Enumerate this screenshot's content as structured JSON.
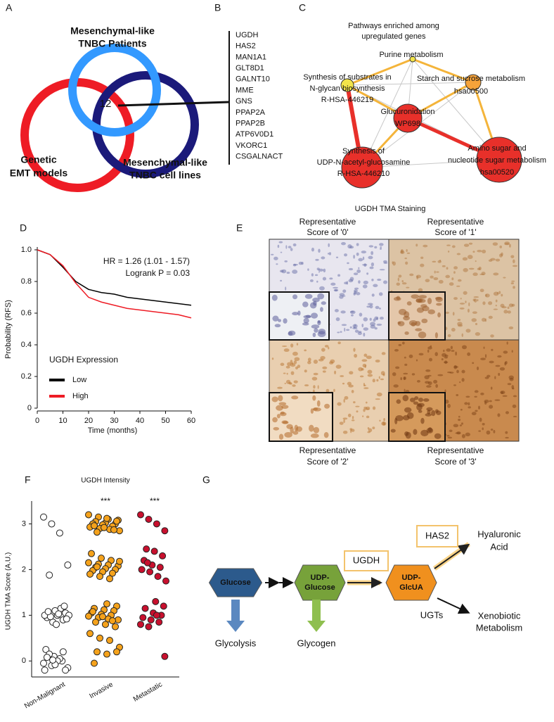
{
  "panel_labels": [
    "A",
    "B",
    "C",
    "D",
    "E",
    "F",
    "G"
  ],
  "venn": {
    "sets": [
      {
        "lines": [
          "Genetic",
          "EMT models"
        ],
        "color": "#ee1c25"
      },
      {
        "lines": [
          "Mesenchymal-like",
          "TNBC cell lines"
        ],
        "color": "#1b1a7a"
      },
      {
        "lines": [
          "Mesenchymal-like",
          "TNBC Patients"
        ],
        "color": "#3399ff"
      }
    ],
    "overlap": 12
  },
  "genes": [
    "UGDH",
    "HAS2",
    "MAN1A1",
    "GLT8D1",
    "GALNT10",
    "MME",
    "GNS",
    "PPAP2A",
    "PPAP2B",
    "ATP6V0D1",
    "VKORC1",
    "CSGALNACT"
  ],
  "network": {
    "title": [
      "Pathways enriched among",
      "upregulated genes"
    ],
    "nodes": [
      {
        "lines": [
          "Purine metabolism"
        ],
        "color": "#f2e44a"
      },
      {
        "lines": [
          "Synthesis of substrates in",
          "N-glycan biosynthesis",
          "R-HSA-446219"
        ],
        "color": "#f2e44a"
      },
      {
        "lines": [
          "Starch and sucrose metabolism",
          "hsa00500"
        ],
        "color": "#f6a33a"
      },
      {
        "lines": [
          "Glucuronidation",
          "WP698"
        ],
        "color": "#e8302a"
      },
      {
        "lines": [
          "Synthesis of",
          "UDP-N-acetyl-glucosamine",
          "R-HSA-446210"
        ],
        "color": "#e8302a"
      },
      {
        "lines": [
          "Amino sugar and",
          "nucleotide sugar metabolism",
          "hsa00520"
        ],
        "color": "#e8302a"
      }
    ]
  },
  "tma": {
    "title": "UGDH TMA Staining",
    "labels": [
      [
        "Representative",
        "Score of '0'"
      ],
      [
        "Representative",
        "Score of '1'"
      ],
      [
        "Representative",
        "Score of '2'"
      ],
      [
        "Representative",
        "Score of '3'"
      ]
    ]
  },
  "pathway": {
    "nodes": [
      {
        "lines": [
          "Glucose"
        ],
        "color": "#2c5a8c"
      },
      {
        "lines": [
          "UDP-",
          "Glucose"
        ],
        "color": "#77a23a"
      },
      {
        "lines": [
          "UDP-",
          "GlcUA"
        ],
        "color": "#f0901e"
      }
    ],
    "enzymes": [
      "UGDH",
      "HAS2",
      "UGTs"
    ],
    "outputs": [
      [
        "Glycolysis"
      ],
      [
        "Glycogen"
      ],
      [
        "Hyaluronic",
        "Acid"
      ],
      [
        "Xenobiotic",
        "Metabolism"
      ]
    ]
  },
  "chart_data": [
    {
      "type": "line",
      "x_label": "Time (months)",
      "y_label": "Probability (RFS)",
      "annotations": [
        "HR = 1.26 (1.01 - 1.57)",
        "Logrank P = 0.03"
      ],
      "legend_title": "UGDH Expression",
      "x": [
        0,
        5,
        10,
        15,
        20,
        25,
        30,
        35,
        40,
        45,
        50,
        55,
        60
      ],
      "series": [
        {
          "name": "Low",
          "color": "#000000",
          "values": [
            1.0,
            0.97,
            0.89,
            0.8,
            0.75,
            0.73,
            0.72,
            0.7,
            0.69,
            0.68,
            0.67,
            0.66,
            0.65
          ]
        },
        {
          "name": "High",
          "color": "#ee1c25",
          "values": [
            1.0,
            0.97,
            0.9,
            0.79,
            0.7,
            0.67,
            0.65,
            0.63,
            0.62,
            0.61,
            0.6,
            0.59,
            0.57
          ]
        }
      ],
      "xlim": [
        0,
        60
      ],
      "xticks": [
        0,
        10,
        20,
        30,
        40,
        50,
        60
      ],
      "ylim": [
        0,
        1
      ],
      "yticks": [
        0,
        0.2,
        0.4,
        0.6,
        0.8,
        {
          "value": 1,
          "label": "1.0"
        }
      ]
    },
    {
      "type": "scatter",
      "title": "UGDH Intensity",
      "y_label": "UGDH TMA Score (A.U.)",
      "categories": [
        "Non-Malignant",
        "Invasive",
        "Metastatic"
      ],
      "annotations": [
        null,
        "***",
        "***"
      ],
      "series": [
        {
          "color": "#ffffff",
          "values": [
            3.15,
            3.0,
            2.8,
            2.1,
            1.88,
            1.0,
            1.05,
            0.95,
            1.1,
            0.9,
            1.0,
            0.85,
            1.15,
            1.0,
            0.97,
            1.03,
            0.92,
            1.08,
            0.8,
            1.2,
            0.25,
            0.1,
            0.0,
            -0.05,
            -0.1,
            0.05,
            -0.15,
            0.15,
            0.0,
            -0.2,
            0.08,
            -0.08,
            0.2,
            -0.2,
            0.02
          ]
        },
        {
          "color": "#f5a21b",
          "values": [
            3.2,
            3.15,
            3.1,
            3.08,
            3.05,
            3.02,
            3.0,
            3.0,
            2.98,
            2.95,
            2.93,
            2.9,
            2.88,
            2.85,
            2.82,
            3.12,
            3.06,
            2.96,
            2.92,
            2.87,
            2.35,
            2.25,
            2.2,
            2.15,
            2.12,
            2.1,
            2.08,
            2.05,
            2.02,
            2.0,
            1.98,
            1.95,
            1.92,
            1.9,
            1.85,
            1.8,
            2.18,
            2.06,
            1.25,
            1.2,
            1.15,
            1.12,
            1.1,
            1.05,
            1.02,
            1.0,
            0.98,
            0.95,
            0.92,
            0.9,
            0.85,
            0.8,
            0.75,
            1.08,
            0.97,
            0.88,
            0.6,
            0.5,
            0.45,
            0.3,
            0.2,
            0.15,
            0.2,
            -0.05
          ]
        },
        {
          "color": "#c8102e",
          "values": [
            3.2,
            3.1,
            3.0,
            2.85,
            2.45,
            2.4,
            2.3,
            2.2,
            2.1,
            2.05,
            2.0,
            1.95,
            1.85,
            1.75,
            2.15,
            1.3,
            1.2,
            1.15,
            1.05,
            1.0,
            0.95,
            0.9,
            0.85,
            0.8,
            0.75,
            1.0,
            0.1
          ]
        }
      ],
      "ylim": [
        -0.35,
        3.5
      ],
      "yticks": [
        0,
        1,
        2,
        3
      ]
    }
  ]
}
